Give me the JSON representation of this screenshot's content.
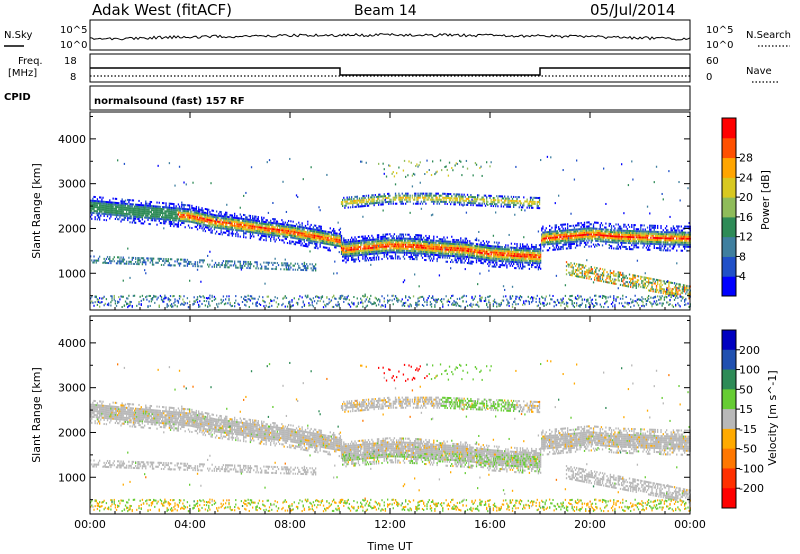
{
  "header": {
    "station": "Adak West (fitACF)",
    "beam": "Beam 14",
    "date": "05/Jul/2014"
  },
  "strip_labels": {
    "nsky": "N.Sky",
    "nsearch": "N.Search",
    "freq_line1": "Freq.",
    "freq_line2": "[MHz]",
    "nave": "Nave",
    "cpid": "CPID",
    "cpid_value": "normalsound (fast) 157 RF",
    "noise_ticks_left": [
      "10^5",
      "10^0"
    ],
    "noise_ticks_right": [
      "10^5",
      "10^0"
    ],
    "freq_ticks_left": [
      "18",
      "8"
    ],
    "freq_ticks_right": [
      "60",
      "0"
    ]
  },
  "colors": {
    "power_scale": [
      "#0000ff",
      "#2050c8",
      "#3f7f9f",
      "#2e8b57",
      "#8fbc5a",
      "#d8c820",
      "#ffa500",
      "#ff5000",
      "#ff0000"
    ],
    "velocity_scale": [
      "#0000c0",
      "#2050b0",
      "#2e8b57",
      "#66cc33",
      "#b8b8b8",
      "#ffaa00",
      "#ff7700",
      "#ff3000",
      "#ff0000"
    ]
  },
  "chart_data": [
    {
      "type": "heatmap",
      "title": "Power",
      "xlabel": "Time UT",
      "ylabel": "Slant Range [km]",
      "colorbar_label": "Power [dB]",
      "colorbar_ticks": [
        "4",
        "8",
        "12",
        "16",
        "20",
        "24",
        "28"
      ],
      "x_ticks": [
        "00:00",
        "04:00",
        "08:00",
        "12:00",
        "16:00",
        "20:00",
        "00:00"
      ],
      "y_ticks": [
        "1000",
        "2000",
        "3000",
        "4000"
      ],
      "xlim": [
        0,
        24
      ],
      "ylim": [
        180,
        4600
      ],
      "band_traces": [
        {
          "name": "main",
          "points": [
            [
              0,
              2450
            ],
            [
              2,
              2350
            ],
            [
              3,
              2300
            ],
            [
              4,
              2250
            ],
            [
              5,
              2120
            ],
            [
              6,
              2050
            ],
            [
              7,
              1970
            ],
            [
              8,
              1900
            ],
            [
              9,
              1800
            ],
            [
              10,
              1700
            ],
            [
              10.05,
              1500
            ],
            [
              11,
              1550
            ],
            [
              12,
              1600
            ],
            [
              13,
              1580
            ],
            [
              14,
              1530
            ],
            [
              15,
              1500
            ],
            [
              16,
              1420
            ],
            [
              17,
              1380
            ],
            [
              18,
              1350
            ],
            [
              18.05,
              1750
            ],
            [
              19,
              1800
            ],
            [
              20,
              1850
            ],
            [
              21,
              1800
            ],
            [
              22,
              1780
            ],
            [
              23,
              1760
            ],
            [
              24,
              1750
            ]
          ]
        },
        {
          "name": "upper",
          "points": [
            [
              10,
              2550
            ],
            [
              12,
              2650
            ],
            [
              14,
              2650
            ],
            [
              16,
              2600
            ],
            [
              18,
              2550
            ]
          ]
        }
      ]
    },
    {
      "type": "heatmap",
      "title": "Velocity",
      "xlabel": "Time UT",
      "ylabel": "Slant Range [km]",
      "colorbar_label": "Velocity [m s^-1]",
      "colorbar_ticks": [
        "200",
        "100",
        "50",
        "15",
        "-15",
        "-50",
        "-100",
        "-200"
      ],
      "x_ticks": [
        "00:00",
        "04:00",
        "08:00",
        "12:00",
        "16:00",
        "20:00",
        "00:00"
      ],
      "y_ticks": [
        "1000",
        "2000",
        "3000",
        "4000"
      ],
      "xlim": [
        0,
        24
      ],
      "ylim": [
        180,
        4600
      ]
    },
    {
      "type": "line",
      "title": "Frequency",
      "x": [
        0,
        10,
        10,
        18,
        18,
        24
      ],
      "values": [
        13,
        13,
        10.5,
        10.5,
        13,
        13
      ],
      "ylim": [
        8,
        18
      ]
    }
  ]
}
